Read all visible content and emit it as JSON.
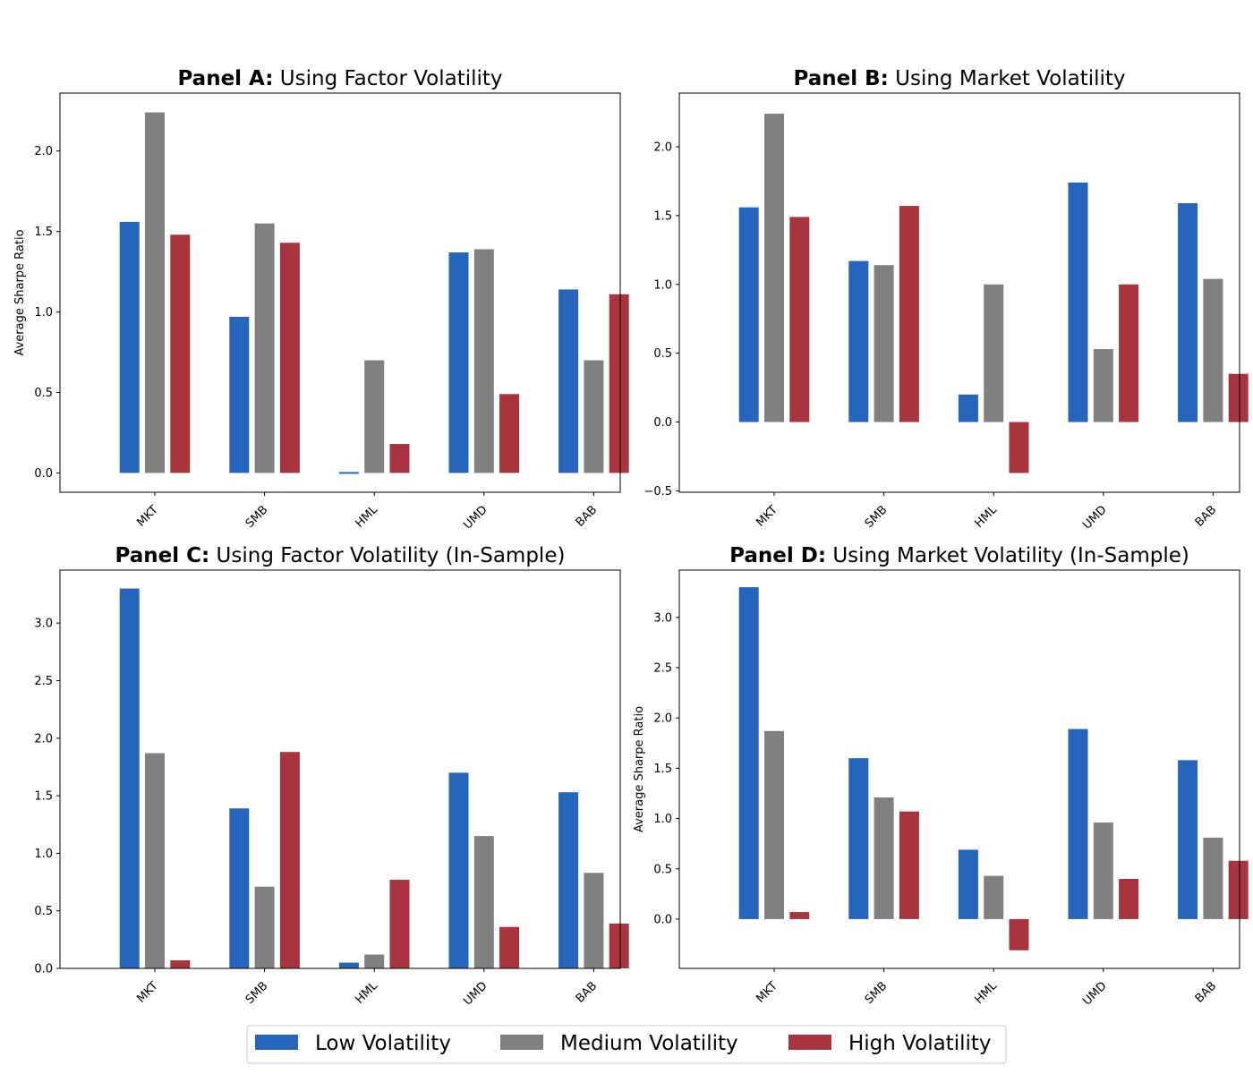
{
  "chart_data": [
    {
      "type": "bar",
      "title_bold": "Panel A:",
      "title_rest": "Using Factor Volatility",
      "categories": [
        "MKT",
        "SMB",
        "HML",
        "UMD",
        "BAB"
      ],
      "series": [
        {
          "name": "Low Volatility",
          "values": [
            1.56,
            0.97,
            -0.01,
            1.37,
            1.14
          ]
        },
        {
          "name": "Medium Volatility",
          "values": [
            2.24,
            1.55,
            0.7,
            1.39,
            0.7
          ]
        },
        {
          "name": "High Volatility",
          "values": [
            1.48,
            1.43,
            0.18,
            0.49,
            1.11
          ]
        }
      ],
      "ylabel": "Average Sharpe Ratio",
      "ylim": [
        -0.12,
        2.36
      ],
      "yticks": [
        0.0,
        0.5,
        1.0,
        1.5,
        2.0
      ],
      "ytick_labels": [
        "0.0",
        "0.5",
        "1.0",
        "1.5",
        "2.0"
      ]
    },
    {
      "type": "bar",
      "title_bold": "Panel B:",
      "title_rest": "Using Market Volatility",
      "categories": [
        "MKT",
        "SMB",
        "HML",
        "UMD",
        "BAB"
      ],
      "series": [
        {
          "name": "Low Volatility",
          "values": [
            1.56,
            1.17,
            0.2,
            1.74,
            1.59
          ]
        },
        {
          "name": "Medium Volatility",
          "values": [
            2.24,
            1.14,
            1.0,
            0.53,
            1.04
          ]
        },
        {
          "name": "High Volatility",
          "values": [
            1.49,
            1.57,
            -0.37,
            1.0,
            0.35
          ]
        }
      ],
      "ylabel": "",
      "ylim": [
        -0.51,
        2.39
      ],
      "yticks": [
        -0.5,
        0.0,
        0.5,
        1.0,
        1.5,
        2.0
      ],
      "ytick_labels": [
        "−0.5",
        "0.0",
        "0.5",
        "1.0",
        "1.5",
        "2.0"
      ]
    },
    {
      "type": "bar",
      "title_bold": "Panel C:",
      "title_rest": "Using Factor Volatility (In-Sample)",
      "categories": [
        "MKT",
        "SMB",
        "HML",
        "UMD",
        "BAB"
      ],
      "series": [
        {
          "name": "Low Volatility",
          "values": [
            3.3,
            1.39,
            0.05,
            1.7,
            1.53
          ]
        },
        {
          "name": "Medium Volatility",
          "values": [
            1.87,
            0.71,
            0.12,
            1.15,
            0.83
          ]
        },
        {
          "name": "High Volatility",
          "values": [
            0.07,
            1.88,
            0.77,
            0.36,
            0.39
          ]
        }
      ],
      "ylabel": "",
      "ylim": [
        0.0,
        3.46
      ],
      "yticks": [
        0.0,
        0.5,
        1.0,
        1.5,
        2.0,
        2.5,
        3.0
      ],
      "ytick_labels": [
        "0.0",
        "0.5",
        "1.0",
        "1.5",
        "2.0",
        "2.5",
        "3.0"
      ]
    },
    {
      "type": "bar",
      "title_bold": "Panel D:",
      "title_rest": "Using Market Volatility (In-Sample)",
      "categories": [
        "MKT",
        "SMB",
        "HML",
        "UMD",
        "BAB"
      ],
      "series": [
        {
          "name": "Low Volatility",
          "values": [
            3.3,
            1.6,
            0.69,
            1.89,
            1.58
          ]
        },
        {
          "name": "Medium Volatility",
          "values": [
            1.87,
            1.21,
            0.43,
            0.96,
            0.81
          ]
        },
        {
          "name": "High Volatility",
          "values": [
            0.07,
            1.07,
            -0.31,
            0.4,
            0.58
          ]
        }
      ],
      "ylabel": "Average Sharpe Ratio",
      "ylim": [
        -0.49,
        3.47
      ],
      "yticks": [
        0.0,
        0.5,
        1.0,
        1.5,
        2.0,
        2.5,
        3.0
      ],
      "ytick_labels": [
        "0.0",
        "0.5",
        "1.0",
        "1.5",
        "2.0",
        "2.5",
        "3.0"
      ]
    }
  ],
  "legend": {
    "placement": "bottom-center",
    "entries": [
      {
        "label": "Low Volatility",
        "color": "#2566bc"
      },
      {
        "label": "Medium Volatility",
        "color": "#808080"
      },
      {
        "label": "High Volatility",
        "color": "#a8353d"
      }
    ]
  },
  "colors": {
    "low": "#2566bc",
    "medium": "#808080",
    "high": "#a8353d"
  }
}
